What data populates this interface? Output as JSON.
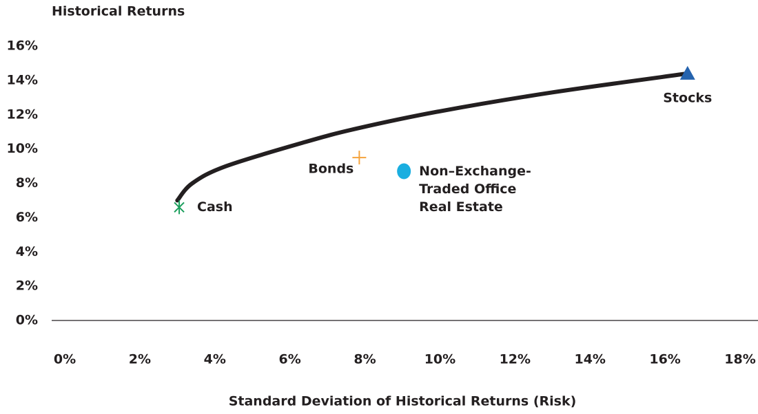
{
  "chart_data": {
    "type": "scatter",
    "title": "Historical Returns",
    "x_label": "Standard Deviation of Historical Returns (Risk)",
    "xlim": [
      0,
      18
    ],
    "ylim": [
      0,
      16
    ],
    "xticks": [
      {
        "value": 0,
        "label": "0%"
      },
      {
        "value": 2,
        "label": "2%"
      },
      {
        "value": 4,
        "label": "4%"
      },
      {
        "value": 6,
        "label": "6%"
      },
      {
        "value": 8,
        "label": "8%"
      },
      {
        "value": 10,
        "label": "10%"
      },
      {
        "value": 12,
        "label": "12%"
      },
      {
        "value": 14,
        "label": "14%"
      },
      {
        "value": 16,
        "label": "16%"
      },
      {
        "value": 18,
        "label": "18%"
      }
    ],
    "yticks": [
      {
        "value": 0,
        "label": "0%"
      },
      {
        "value": 2,
        "label": "2%"
      },
      {
        "value": 4,
        "label": "4%"
      },
      {
        "value": 6,
        "label": "6%"
      },
      {
        "value": 8,
        "label": "8%"
      },
      {
        "value": 10,
        "label": "10%"
      },
      {
        "value": 12,
        "label": "12%"
      },
      {
        "value": 14,
        "label": "14%"
      },
      {
        "value": 16,
        "label": "16%"
      }
    ],
    "grid": false,
    "line": {
      "color": "#231f20",
      "x": [
        3.0,
        3.4,
        4.3,
        6.4,
        7.8,
        10.0,
        13.0,
        16.6
      ],
      "values": [
        7.0,
        8.0,
        9.0,
        10.4,
        11.2,
        12.2,
        13.3,
        14.4
      ]
    },
    "series": [
      {
        "name": "Cash",
        "color": "#1a9e5c",
        "marker": "asterisk",
        "x": [
          3.05
        ],
        "values": [
          6.6
        ]
      },
      {
        "name": "Bonds",
        "color": "#f5a33c",
        "marker": "plus",
        "x": [
          7.85
        ],
        "values": [
          9.5
        ]
      },
      {
        "name": "Non–Exchange-\nTraded Office\nReal Estate",
        "color": "#1aaee0",
        "marker": "circle",
        "x": [
          9.04
        ],
        "values": [
          8.7
        ]
      },
      {
        "name": "Stocks",
        "color": "#2563ae",
        "marker": "triangle",
        "x": [
          16.6
        ],
        "values": [
          14.4
        ]
      }
    ]
  }
}
